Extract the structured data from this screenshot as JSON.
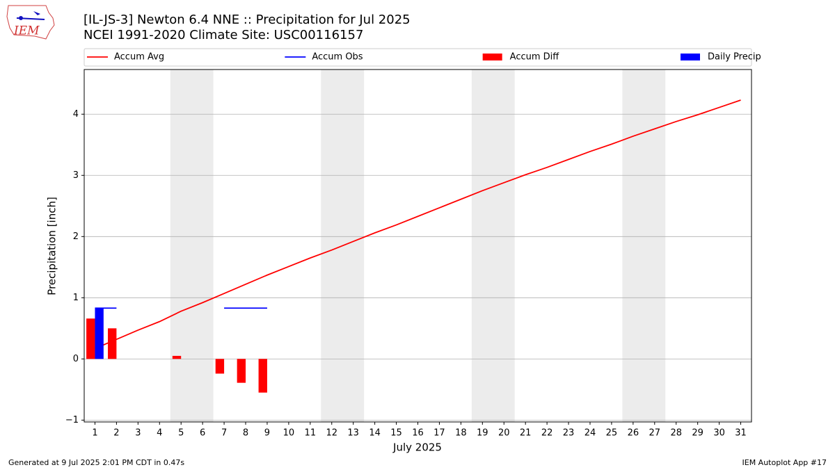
{
  "logo_text": "IEM",
  "chart_data": {
    "type": "combo",
    "title": "[IL-JS-3] Newton 6.4 NNE :: Precipitation for Jul 2025",
    "subtitle": "NCEI 1991-2020 Climate Site: USC00116157",
    "x_label": "July 2025",
    "y_label": "Precipitation [inch]",
    "x": [
      1,
      2,
      3,
      4,
      5,
      6,
      7,
      8,
      9,
      10,
      11,
      12,
      13,
      14,
      15,
      16,
      17,
      18,
      19,
      20,
      21,
      22,
      23,
      24,
      25,
      26,
      27,
      28,
      29,
      30,
      31
    ],
    "xlim": [
      0.5,
      31.5
    ],
    "xticks": [
      1,
      2,
      3,
      4,
      5,
      6,
      7,
      8,
      9,
      10,
      11,
      12,
      13,
      14,
      15,
      16,
      17,
      18,
      19,
      20,
      21,
      22,
      23,
      24,
      25,
      26,
      27,
      28,
      29,
      30,
      31
    ],
    "ylim": [
      -1.03,
      4.73
    ],
    "yticks": [
      {
        "value": -1,
        "label": "−1"
      },
      0,
      1,
      2,
      3,
      4
    ],
    "grid": true,
    "legend": "top",
    "shaded_spans": [
      [
        4.5,
        6.5
      ],
      [
        11.5,
        13.5
      ],
      [
        18.5,
        20.5
      ],
      [
        25.5,
        27.5
      ]
    ],
    "shade_color": "#ececec",
    "series": [
      {
        "name": "Accum Avg",
        "type": "line",
        "color": "#ff0000",
        "values": [
          0.17,
          0.32,
          0.47,
          0.61,
          0.78,
          0.92,
          1.07,
          1.22,
          1.37,
          1.51,
          1.65,
          1.78,
          1.92,
          2.06,
          2.19,
          2.33,
          2.47,
          2.61,
          2.75,
          2.88,
          3.01,
          3.13,
          3.26,
          3.39,
          3.51,
          3.64,
          3.76,
          3.88,
          3.99,
          4.11,
          4.23
        ]
      },
      {
        "name": "Accum Obs",
        "type": "line",
        "color": "#0000ff",
        "values": [
          0.83,
          0.83,
          null,
          null,
          null,
          null,
          0.83,
          0.83,
          0.83,
          null,
          null,
          null,
          null,
          null,
          null,
          null,
          null,
          null,
          null,
          null,
          null,
          null,
          null,
          null,
          null,
          null,
          null,
          null,
          null,
          null,
          null
        ]
      },
      {
        "name": "Accum Diff",
        "type": "bar",
        "color": "#ff0000",
        "values": [
          0.66,
          0.5,
          null,
          null,
          0.05,
          null,
          -0.24,
          -0.39,
          -0.55,
          null,
          null,
          null,
          null,
          null,
          null,
          null,
          null,
          null,
          null,
          null,
          null,
          null,
          null,
          null,
          null,
          null,
          null,
          null,
          null,
          null,
          null
        ]
      },
      {
        "name": "Daily Precip",
        "type": "bar",
        "color": "#0000ff",
        "values": [
          0.83,
          0,
          0,
          0,
          0,
          0,
          0,
          0,
          0,
          null,
          null,
          null,
          null,
          null,
          null,
          null,
          null,
          null,
          null,
          null,
          null,
          null,
          null,
          null,
          null,
          null,
          null,
          null,
          null,
          null,
          null
        ]
      }
    ],
    "footer_left": "Generated at 9 Jul 2025 2:01 PM CDT in 0.47s",
    "footer_right": "IEM Autoplot App #17"
  }
}
